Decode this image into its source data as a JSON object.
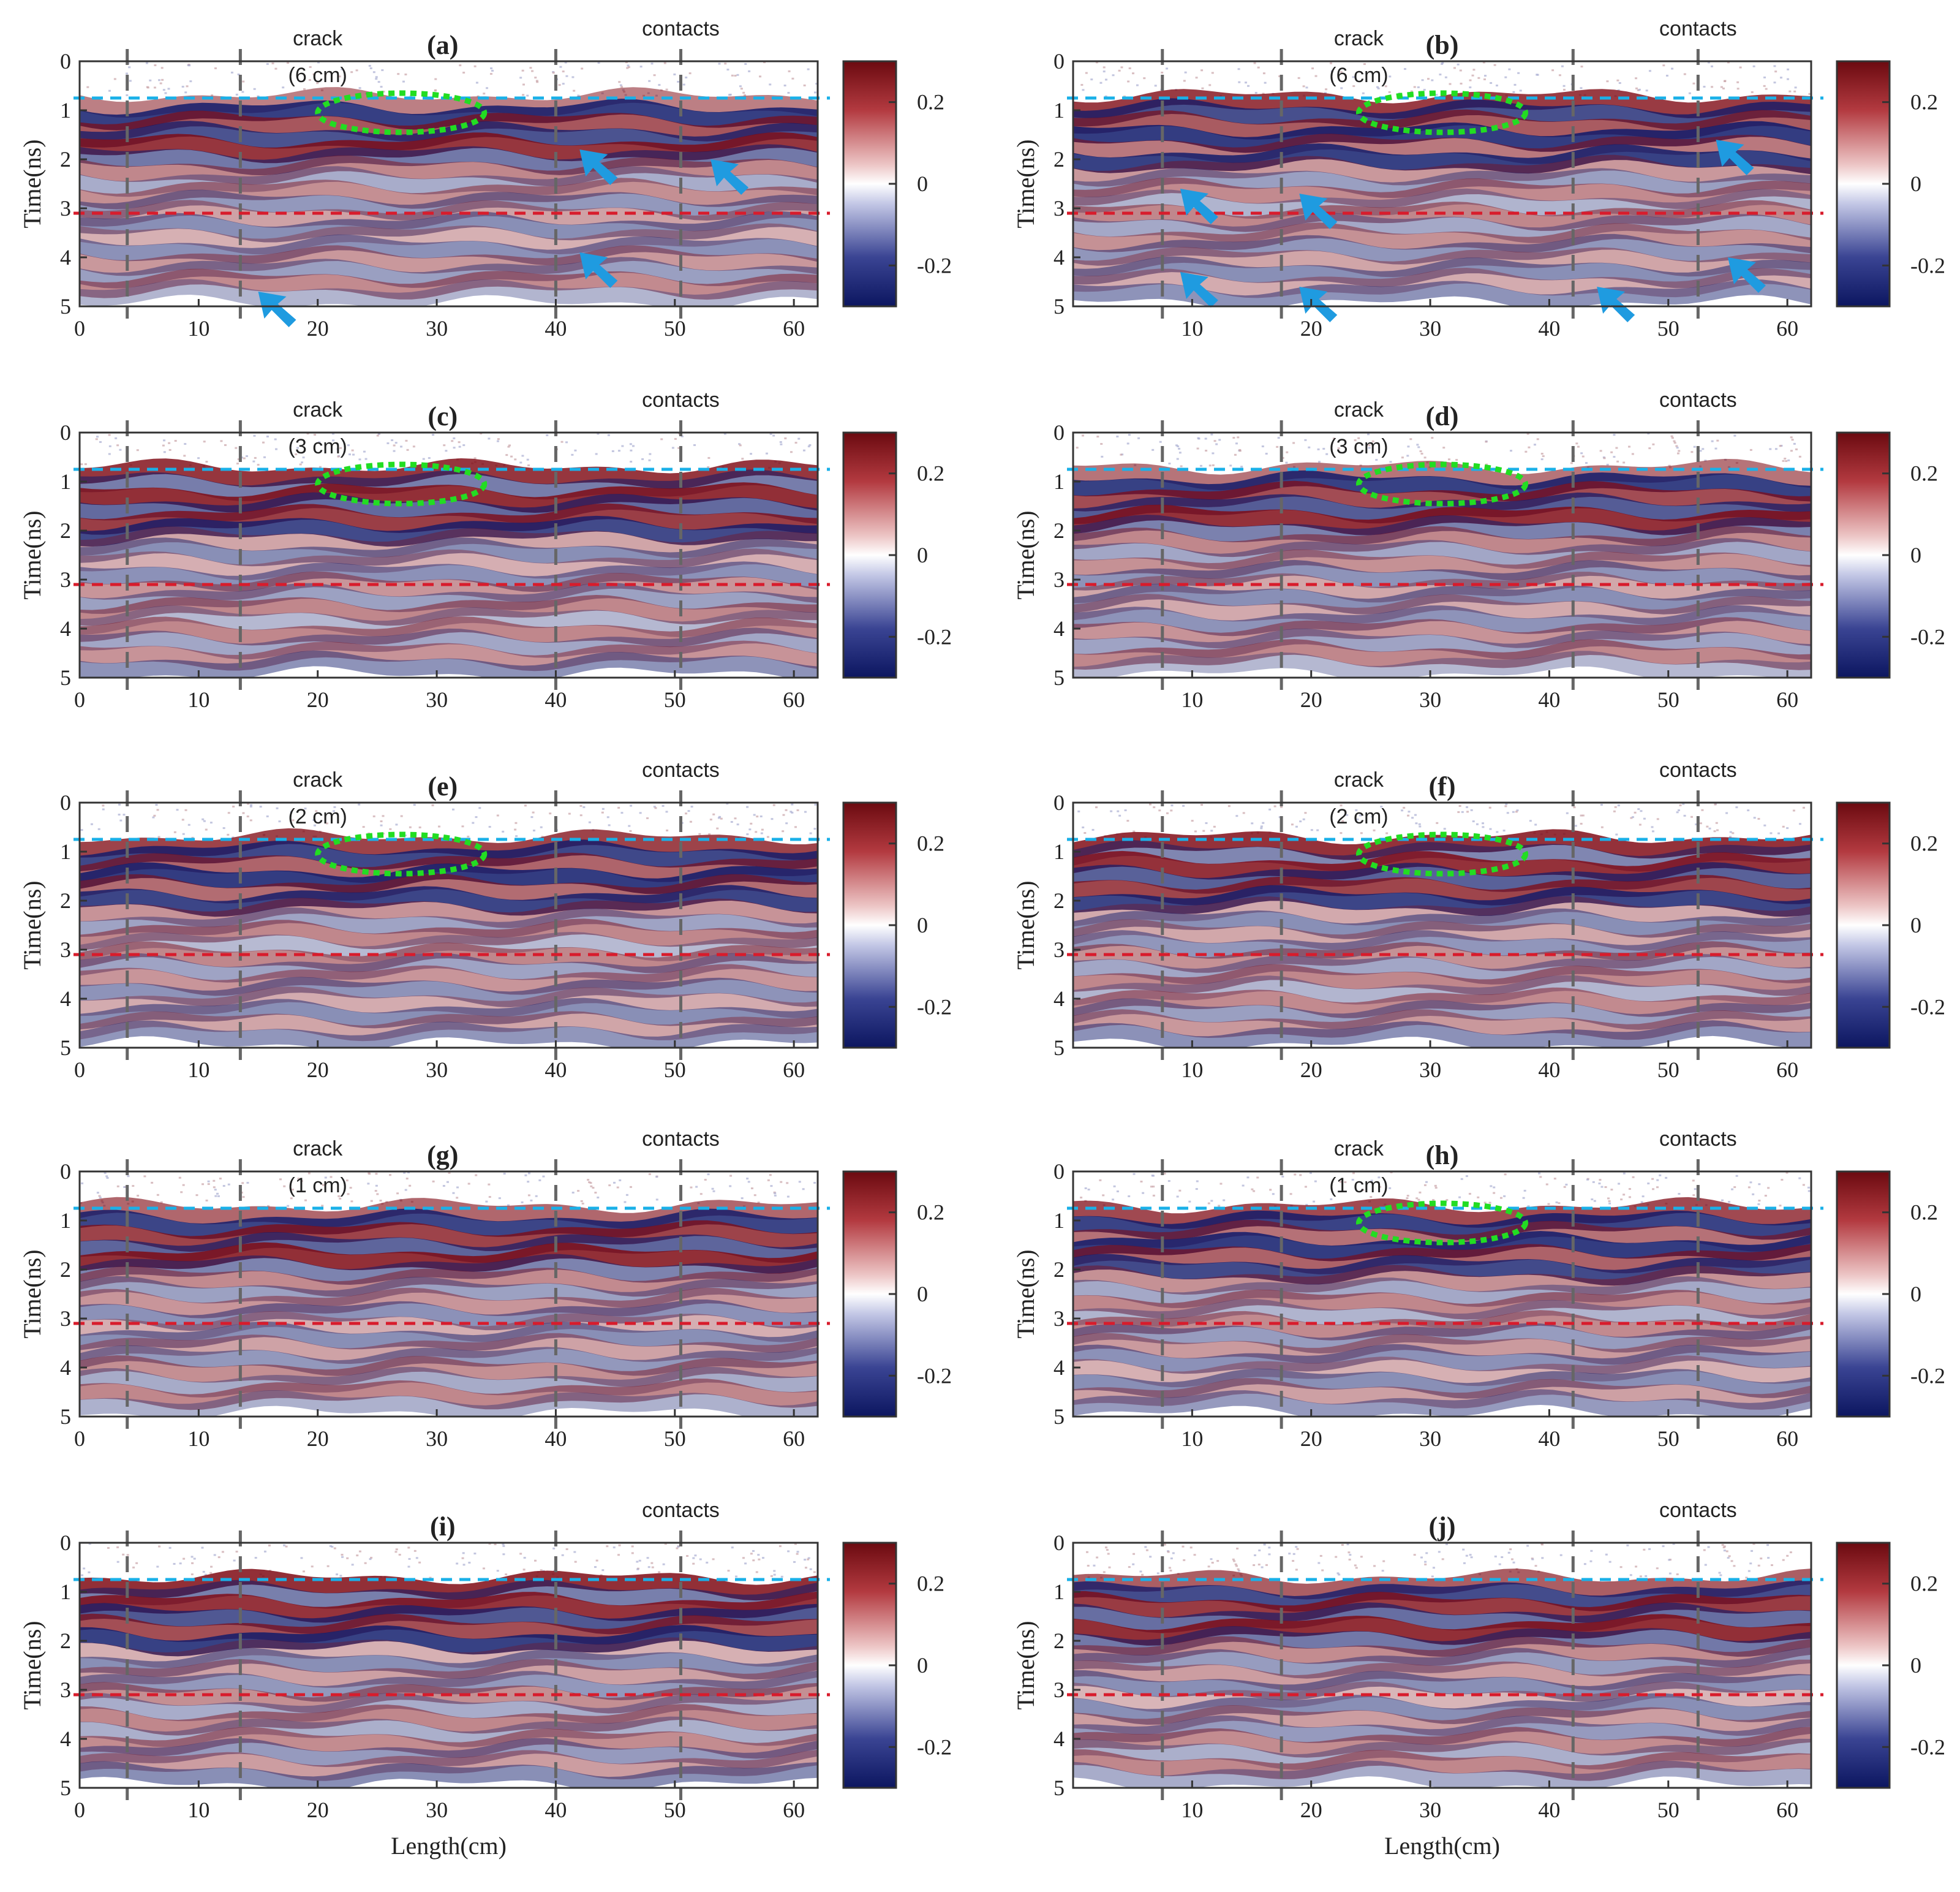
{
  "figure": {
    "panels": [
      {
        "label": "(a)",
        "crack_label": "crack",
        "crack_size": "(6 cm)",
        "contacts_label": "contacts",
        "has_ellipse": true
      },
      {
        "label": "(b)",
        "crack_label": "crack",
        "crack_size": "(6 cm)",
        "contacts_label": "contacts",
        "has_ellipse": true
      },
      {
        "label": "(c)",
        "crack_label": "crack",
        "crack_size": "(3 cm)",
        "contacts_label": "contacts",
        "has_ellipse": true
      },
      {
        "label": "(d)",
        "crack_label": "crack",
        "crack_size": "(3 cm)",
        "contacts_label": "contacts",
        "has_ellipse": true
      },
      {
        "label": "(e)",
        "crack_label": "crack",
        "crack_size": "(2 cm)",
        "contacts_label": "contacts",
        "has_ellipse": true
      },
      {
        "label": "(f)",
        "crack_label": "crack",
        "crack_size": "(2 cm)",
        "contacts_label": "contacts",
        "has_ellipse": true
      },
      {
        "label": "(g)",
        "crack_label": "crack",
        "crack_size": "(1 cm)",
        "contacts_label": "contacts",
        "has_ellipse": false
      },
      {
        "label": "(h)",
        "crack_label": "crack",
        "crack_size": "(1 cm)",
        "contacts_label": "contacts",
        "has_ellipse": true
      },
      {
        "label": "(i)",
        "crack_label": "",
        "crack_size": "",
        "contacts_label": "contacts",
        "has_ellipse": false
      },
      {
        "label": "(j)",
        "crack_label": "",
        "crack_size": "",
        "contacts_label": "contacts",
        "has_ellipse": false
      }
    ],
    "colors": {
      "positive": "#7f0a14",
      "negative": "#0f1a6b",
      "zero": "#ffffff",
      "surface_line": "#1ab0e8",
      "base_line": "#d81c2c",
      "crack_ellipse": "#22dd22",
      "arrow": "#1f9be0",
      "contact_line": "#666666"
    }
  },
  "chart_data": {
    "type": "heatmap",
    "description_of_axes": "GPR B-scan radargrams, 10 panels",
    "xlabel": "Length(cm)",
    "ylabel": "Time(ns)",
    "xlim": [
      0,
      62
    ],
    "ylim": [
      5,
      0
    ],
    "x_ticks": [
      "0",
      "10",
      "20",
      "30",
      "40",
      "50",
      "60"
    ],
    "y_ticks": [
      "0",
      "1",
      "2",
      "3",
      "4",
      "5"
    ],
    "colorbar": {
      "range": [
        -0.3,
        0.3
      ],
      "ticks": [
        "0.2",
        "0",
        "-0.2"
      ]
    },
    "surface_reflection_ns": 0.75,
    "base_reflection_ns": 3.1,
    "contact_positions_cm": {
      "left_column": [
        4,
        13.5,
        40,
        50.5
      ],
      "right_column": [
        7.5,
        17.5,
        42,
        52.5
      ]
    },
    "crack_center_cm": {
      "left_column": 26,
      "right_column": 30
    },
    "ellipse_time_ns": [
      0.75,
      1.35
    ]
  }
}
